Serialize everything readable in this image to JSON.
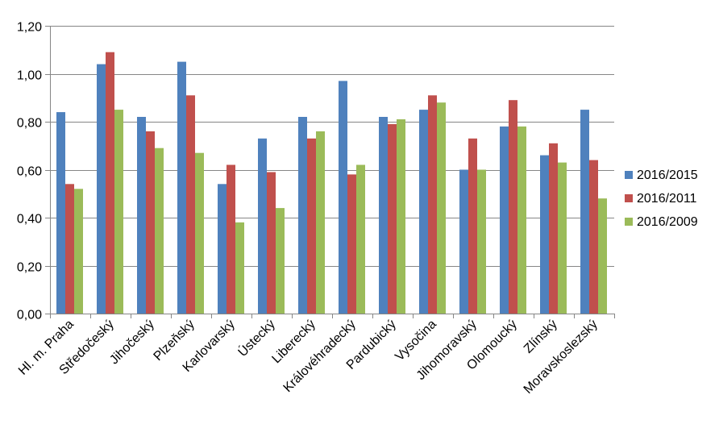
{
  "chart_data": {
    "type": "bar",
    "categories": [
      "Hl. m. Praha",
      "Středočeský",
      "Jihočeský",
      "Plzeňský",
      "Karlovarský",
      "Ústecký",
      "Liberecký",
      "Královéhradecký",
      "Pardubický",
      "Vysočina",
      "Jihomoravský",
      "Olomoucký",
      "Zlínský",
      "Moravskoslezský"
    ],
    "series": [
      {
        "name": "2016/2015",
        "color": "#4f81bd",
        "values": [
          0.84,
          1.04,
          0.82,
          1.05,
          0.54,
          0.73,
          0.82,
          0.97,
          0.82,
          0.85,
          0.6,
          0.78,
          0.66,
          0.85
        ]
      },
      {
        "name": "2016/2011",
        "color": "#c0504d",
        "values": [
          0.54,
          1.09,
          0.76,
          0.91,
          0.62,
          0.59,
          0.73,
          0.58,
          0.79,
          0.91,
          0.73,
          0.89,
          0.71,
          0.64
        ]
      },
      {
        "name": "2016/2009",
        "color": "#9bbb59",
        "values": [
          0.52,
          0.85,
          0.69,
          0.67,
          0.38,
          0.44,
          0.76,
          0.62,
          0.81,
          0.88,
          0.6,
          0.78,
          0.63,
          0.48
        ]
      }
    ],
    "yticks": [
      "0,00",
      "0,20",
      "0,40",
      "0,60",
      "0,80",
      "1,00",
      "1,20"
    ],
    "ylim": [
      0,
      1.2
    ],
    "grid": true,
    "legend_position": "right",
    "title": "",
    "xlabel": "",
    "ylabel": ""
  }
}
